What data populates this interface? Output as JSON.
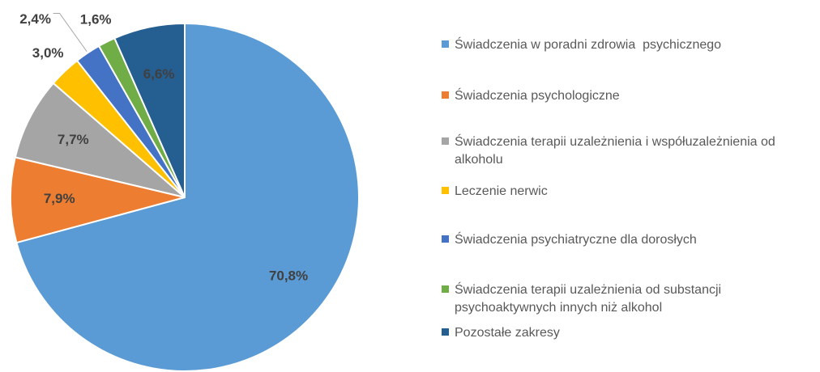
{
  "chart_data": {
    "type": "pie",
    "categories": [
      "Świadczenia w poradni zdrowia  psychicznego",
      "Świadczenia psychologiczne",
      "Świadczenia terapii uzależnienia i współuzależnienia od alkoholu",
      "Leczenie nerwic",
      "Świadczenia psychiatryczne dla dorosłych",
      "Świadczenia terapii uzależnienia od substancji psychoaktywnych innych niż alkohol",
      "Pozostałe zakresy"
    ],
    "values": [
      70.8,
      7.9,
      7.7,
      3.0,
      2.4,
      1.6,
      6.6
    ],
    "value_labels": [
      "70,8%",
      "7,9%",
      "7,7%",
      "3,0%",
      "2,4%",
      "1,6%",
      "6,6%"
    ],
    "colors": [
      "#5b9bd5",
      "#ed7d31",
      "#a5a5a5",
      "#ffc000",
      "#4472c4",
      "#70ad47",
      "#255e91"
    ],
    "legend": "right"
  }
}
